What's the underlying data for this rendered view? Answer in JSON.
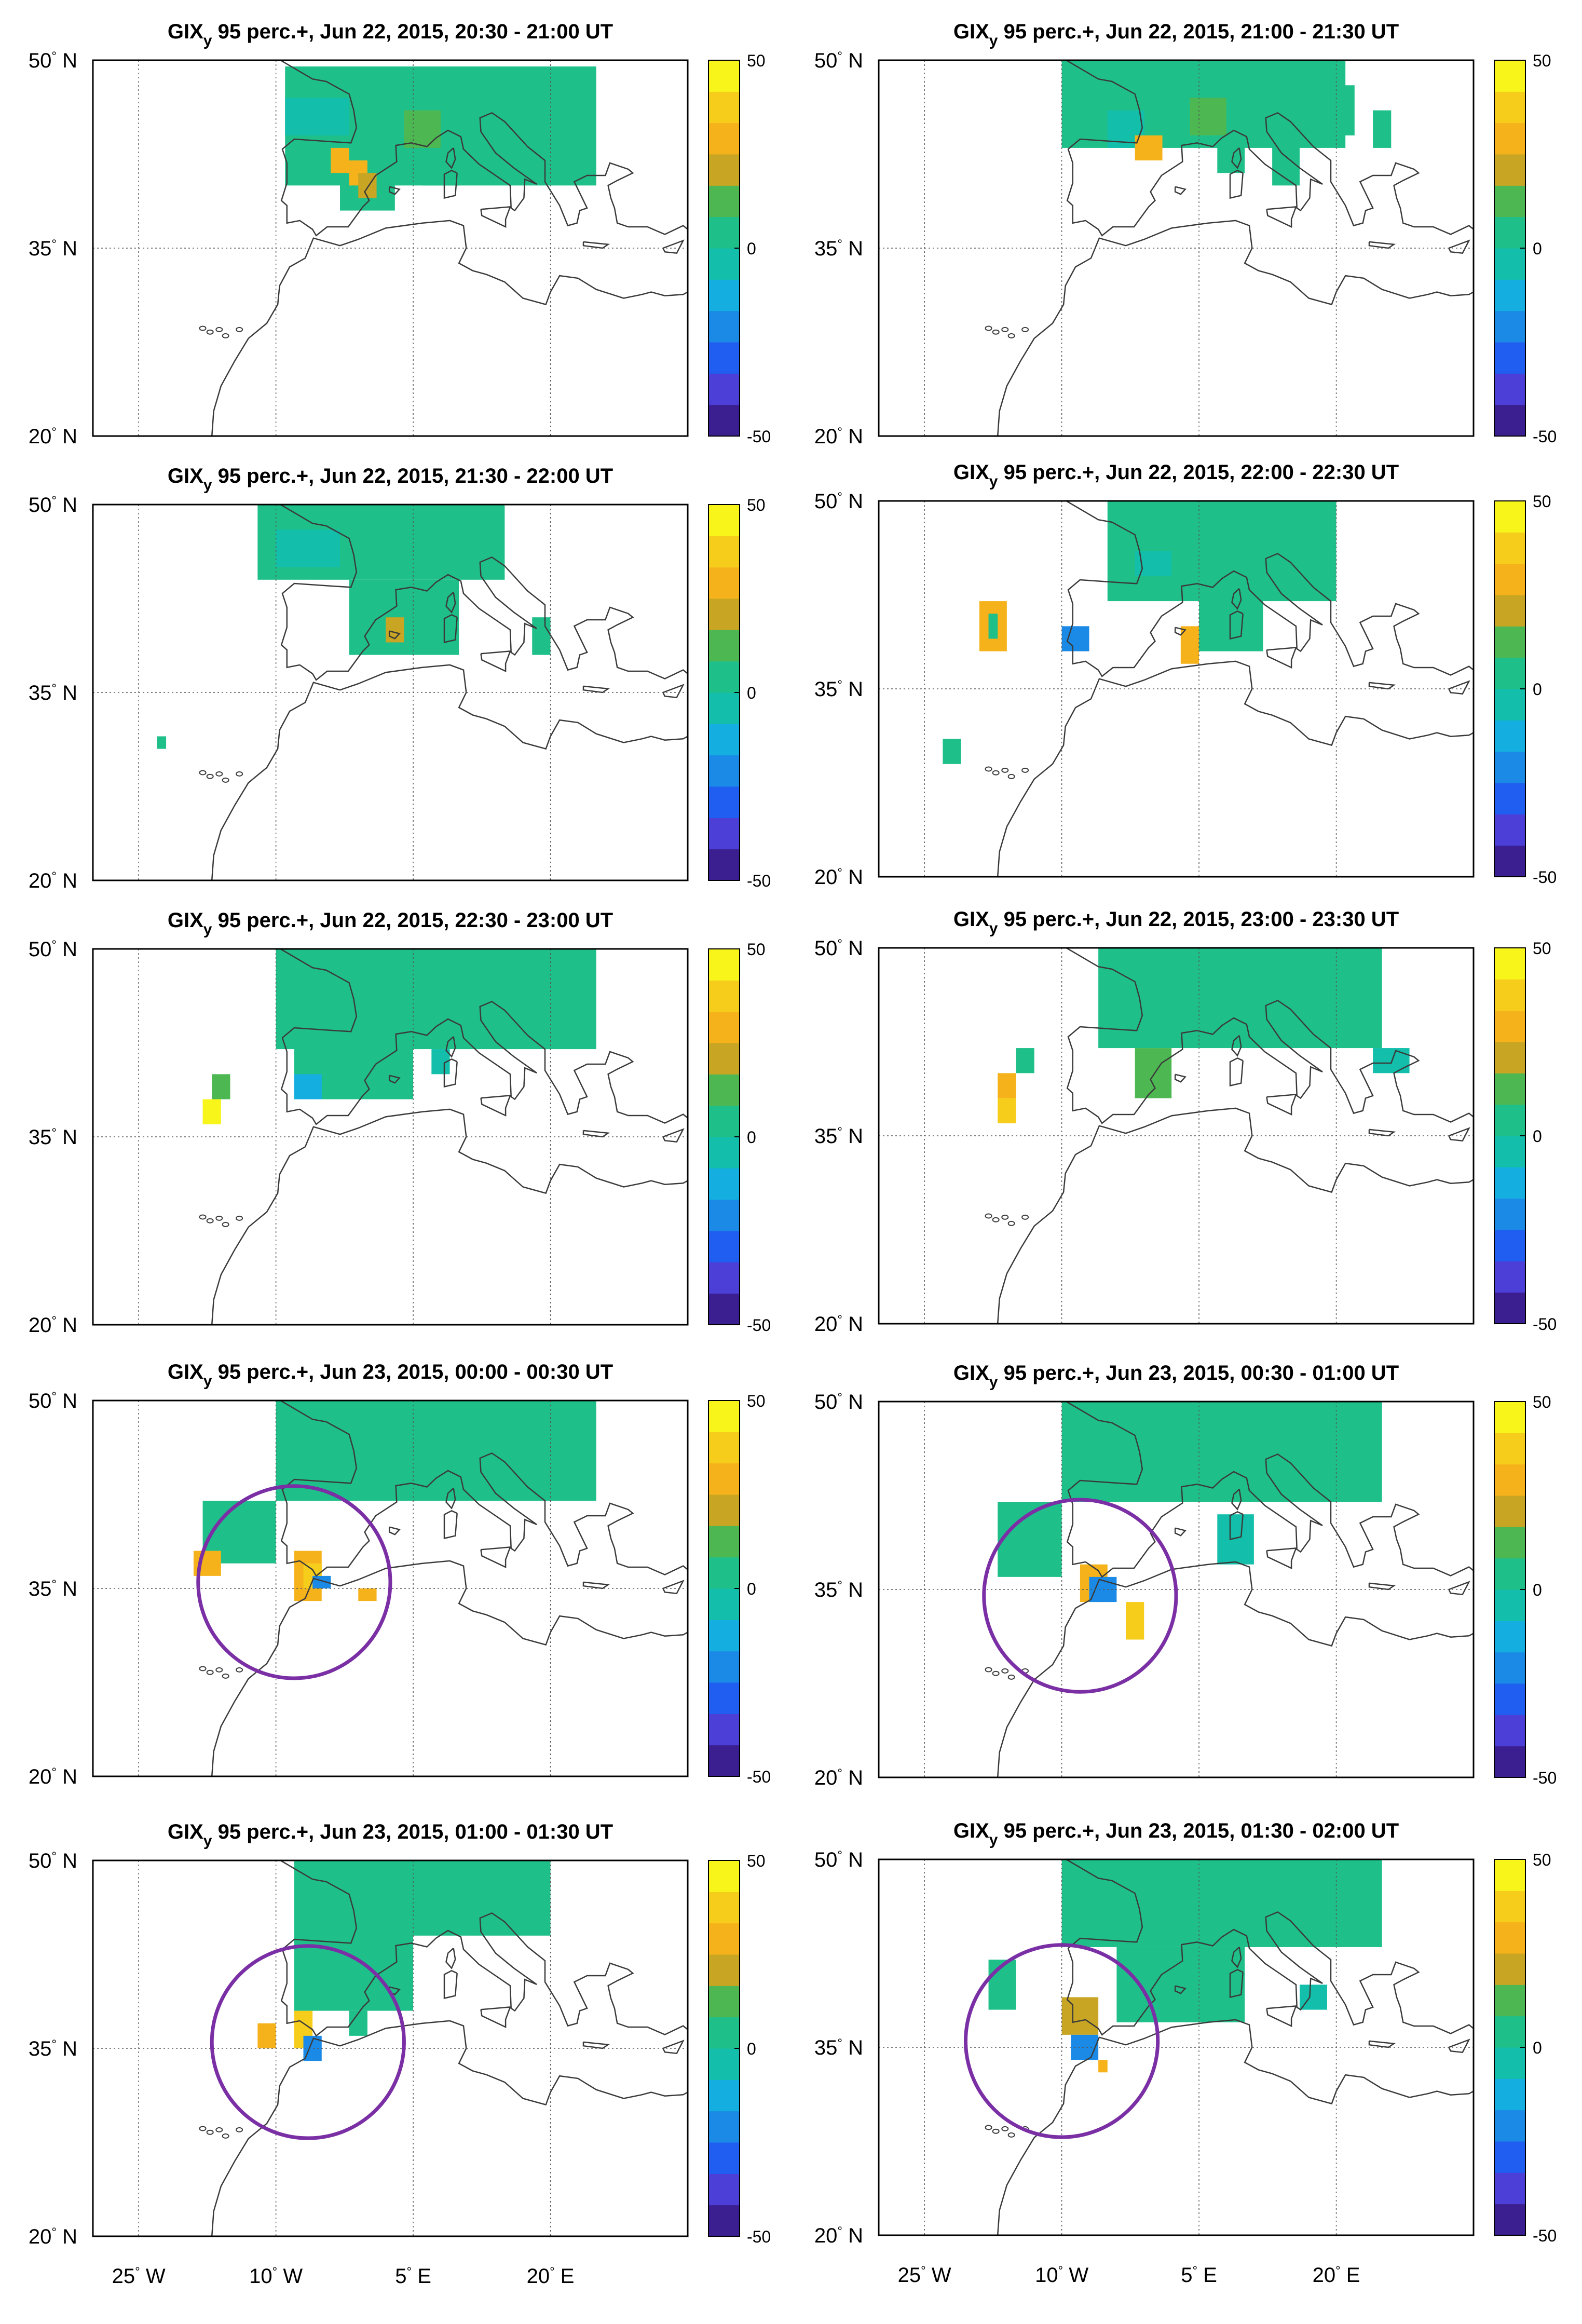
{
  "chart_data": {
    "type": "heatmap",
    "variable": "GIX",
    "variable_subscript": "y",
    "title_suffix": " 95 perc.+, ",
    "axis": {
      "lon": {
        "min": -30,
        "max": 35,
        "ticks": [
          -25,
          -10,
          5,
          20
        ],
        "labels": [
          "25",
          "10",
          "5",
          "20"
        ],
        "hemis": [
          "W",
          "W",
          "E",
          "E"
        ]
      },
      "lat": {
        "min": 20,
        "max": 50,
        "ticks": [
          20,
          35,
          50
        ],
        "labels": [
          "20",
          "35",
          "50"
        ],
        "hemi": "N"
      },
      "grid": true
    },
    "colorbar": {
      "min": -50,
      "max": 50,
      "ticks": [
        50,
        0,
        -50
      ],
      "tick_labels": [
        "50",
        "0",
        "-50"
      ],
      "colors": [
        "#3b1e8f",
        "#4b3fd8",
        "#1f5ef0",
        "#1a8ae6",
        "#14aee0",
        "#13bfaa",
        "#1fbf8a",
        "#4db852",
        "#c8a523",
        "#f5b21a",
        "#f7cd1c",
        "#f7f51a"
      ]
    },
    "panels": [
      {
        "title": "Jun 22, 2015, 20:30 - 21:00 UT",
        "circle": null,
        "patches": [
          {
            "lon": [
              -9,
              25
            ],
            "lat": [
              40,
              49.5
            ],
            "c": 6
          },
          {
            "lon": [
              -9,
              -2
            ],
            "lat": [
              44,
              47
            ],
            "c": 5
          },
          {
            "lon": [
              4,
              8
            ],
            "lat": [
              43,
              46
            ],
            "c": 7
          },
          {
            "lon": [
              -3,
              3
            ],
            "lat": [
              38,
              43
            ],
            "c": 6
          },
          {
            "lon": [
              -2,
              0
            ],
            "lat": [
              40,
              42
            ],
            "c": 9
          },
          {
            "lon": [
              -1,
              1
            ],
            "lat": [
              39,
              41
            ],
            "c": 8
          },
          {
            "lon": [
              6,
              10
            ],
            "lat": [
              40,
              43
            ],
            "c": 6
          },
          {
            "lon": [
              -4,
              -2
            ],
            "lat": [
              41,
              43
            ],
            "c": 9
          },
          {
            "lon": [
              18,
              20
            ],
            "lat": [
              41,
              43
            ],
            "c": 6
          }
        ]
      },
      {
        "title": "Jun 22, 2015, 21:00 - 21:30 UT",
        "circle": null,
        "patches": [
          {
            "lon": [
              -10,
              21
            ],
            "lat": [
              43,
              50
            ],
            "c": 6
          },
          {
            "lon": [
              -5,
              -1
            ],
            "lat": [
              43,
              46
            ],
            "c": 5
          },
          {
            "lon": [
              -2,
              1
            ],
            "lat": [
              42,
              44
            ],
            "c": 9
          },
          {
            "lon": [
              4,
              8
            ],
            "lat": [
              44,
              47
            ],
            "c": 7
          },
          {
            "lon": [
              7,
              10
            ],
            "lat": [
              41,
              44
            ],
            "c": 6
          },
          {
            "lon": [
              13,
              16
            ],
            "lat": [
              40,
              44
            ],
            "c": 6
          },
          {
            "lon": [
              20,
              22
            ],
            "lat": [
              44,
              48
            ],
            "c": 6
          },
          {
            "lon": [
              24,
              26
            ],
            "lat": [
              43,
              46
            ],
            "c": 6
          }
        ]
      },
      {
        "title": "Jun 22, 2015, 21:30 - 22:00 UT",
        "circle": null,
        "patches": [
          {
            "lon": [
              -12,
              15
            ],
            "lat": [
              44,
              50
            ],
            "c": 6
          },
          {
            "lon": [
              -10,
              -3
            ],
            "lat": [
              45,
              48
            ],
            "c": 5
          },
          {
            "lon": [
              -2,
              10
            ],
            "lat": [
              38,
              44
            ],
            "c": 6
          },
          {
            "lon": [
              2,
              4
            ],
            "lat": [
              39,
              41
            ],
            "c": 8
          },
          {
            "lon": [
              18,
              20
            ],
            "lat": [
              38,
              41
            ],
            "c": 6
          },
          {
            "lon": [
              -23,
              -22
            ],
            "lat": [
              30.5,
              31.5
            ],
            "c": 6
          }
        ]
      },
      {
        "title": "Jun 22, 2015, 22:00 - 22:30 UT",
        "circle": null,
        "patches": [
          {
            "lon": [
              -5,
              20
            ],
            "lat": [
              42,
              50
            ],
            "c": 6
          },
          {
            "lon": [
              -2,
              2
            ],
            "lat": [
              44,
              46
            ],
            "c": 5
          },
          {
            "lon": [
              -19,
              -16
            ],
            "lat": [
              38,
              42
            ],
            "c": 9
          },
          {
            "lon": [
              -18,
              -17
            ],
            "lat": [
              39,
              41
            ],
            "c": 6
          },
          {
            "lon": [
              3,
              5
            ],
            "lat": [
              37,
              40
            ],
            "c": 9
          },
          {
            "lon": [
              5,
              12
            ],
            "lat": [
              38,
              43
            ],
            "c": 6
          },
          {
            "lon": [
              -23,
              -21
            ],
            "lat": [
              29,
              31
            ],
            "c": 6
          },
          {
            "lon": [
              -10,
              -7
            ],
            "lat": [
              38,
              40
            ],
            "c": 3
          }
        ]
      },
      {
        "title": "Jun 22, 2015, 22:30 - 23:00 UT",
        "circle": null,
        "patches": [
          {
            "lon": [
              -10,
              25
            ],
            "lat": [
              42,
              50
            ],
            "c": 6
          },
          {
            "lon": [
              -8,
              5
            ],
            "lat": [
              38,
              43
            ],
            "c": 6
          },
          {
            "lon": [
              -8,
              -5
            ],
            "lat": [
              38,
              40
            ],
            "c": 4
          },
          {
            "lon": [
              -17,
              -15
            ],
            "lat": [
              38,
              40
            ],
            "c": 7
          },
          {
            "lon": [
              -18,
              -16
            ],
            "lat": [
              36,
              38
            ],
            "c": 11
          },
          {
            "lon": [
              7,
              9
            ],
            "lat": [
              40,
              42
            ],
            "c": 5
          }
        ]
      },
      {
        "title": "Jun 22, 2015, 23:00 - 23:30 UT",
        "circle": null,
        "patches": [
          {
            "lon": [
              -6,
              25
            ],
            "lat": [
              42,
              50
            ],
            "c": 6
          },
          {
            "lon": [
              -2,
              2
            ],
            "lat": [
              38,
              42
            ],
            "c": 7
          },
          {
            "lon": [
              -17,
              -15
            ],
            "lat": [
              38,
              40
            ],
            "c": 9
          },
          {
            "lon": [
              -17,
              -15
            ],
            "lat": [
              36,
              38
            ],
            "c": 10
          },
          {
            "lon": [
              -15,
              -13
            ],
            "lat": [
              40,
              42
            ],
            "c": 6
          },
          {
            "lon": [
              24,
              28
            ],
            "lat": [
              40,
              42
            ],
            "c": 5
          }
        ]
      },
      {
        "title": "Jun 23, 2015, 00:00 - 00:30 UT",
        "circle": {
          "lon": -8,
          "lat": 35.5,
          "r_lon": 10.5
        },
        "patches": [
          {
            "lon": [
              -10,
              25
            ],
            "lat": [
              42,
              50
            ],
            "c": 6
          },
          {
            "lon": [
              -18,
              -10
            ],
            "lat": [
              37,
              42
            ],
            "c": 6
          },
          {
            "lon": [
              -8,
              -5
            ],
            "lat": [
              34,
              38
            ],
            "c": 9
          },
          {
            "lon": [
              -7,
              -5
            ],
            "lat": [
              35,
              37
            ],
            "c": 10
          },
          {
            "lon": [
              -6,
              -4
            ],
            "lat": [
              35,
              36
            ],
            "c": 3
          },
          {
            "lon": [
              -19,
              -16
            ],
            "lat": [
              36,
              38
            ],
            "c": 9
          },
          {
            "lon": [
              -1,
              1
            ],
            "lat": [
              34,
              35
            ],
            "c": 9
          }
        ]
      },
      {
        "title": "Jun 23, 2015, 00:30 - 01:00 UT",
        "circle": {
          "lon": -8,
          "lat": 34.5,
          "r_lon": 10.5
        },
        "patches": [
          {
            "lon": [
              -10,
              25
            ],
            "lat": [
              42,
              50
            ],
            "c": 6
          },
          {
            "lon": [
              -17,
              -10
            ],
            "lat": [
              36,
              42
            ],
            "c": 6
          },
          {
            "lon": [
              -8,
              -5
            ],
            "lat": [
              34,
              37
            ],
            "c": 9
          },
          {
            "lon": [
              -7,
              -4
            ],
            "lat": [
              34,
              36
            ],
            "c": 3
          },
          {
            "lon": [
              -3,
              -1
            ],
            "lat": [
              31,
              34
            ],
            "c": 10
          },
          {
            "lon": [
              7,
              11
            ],
            "lat": [
              37,
              41
            ],
            "c": 5
          }
        ]
      },
      {
        "title": "Jun 23, 2015, 01:00 - 01:30 UT",
        "circle": {
          "lon": -6.5,
          "lat": 35.5,
          "r_lon": 10.5
        },
        "patches": [
          {
            "lon": [
              -8,
              20
            ],
            "lat": [
              44,
              50
            ],
            "c": 6
          },
          {
            "lon": [
              -8,
              5
            ],
            "lat": [
              38,
              45
            ],
            "c": 6
          },
          {
            "lon": [
              -12,
              -10
            ],
            "lat": [
              35,
              37
            ],
            "c": 9
          },
          {
            "lon": [
              -8,
              -6
            ],
            "lat": [
              35,
              38
            ],
            "c": 10
          },
          {
            "lon": [
              -7,
              -5
            ],
            "lat": [
              34,
              36
            ],
            "c": 3
          },
          {
            "lon": [
              -2,
              0
            ],
            "lat": [
              36,
              38
            ],
            "c": 6
          }
        ]
      },
      {
        "title": "Jun 23, 2015, 01:30 - 02:00 UT",
        "circle": {
          "lon": -10,
          "lat": 35.5,
          "r_lon": 10.5
        },
        "patches": [
          {
            "lon": [
              -10,
              25
            ],
            "lat": [
              43,
              50
            ],
            "c": 6
          },
          {
            "lon": [
              -4,
              10
            ],
            "lat": [
              37,
              43
            ],
            "c": 6
          },
          {
            "lon": [
              -18,
              -15
            ],
            "lat": [
              38,
              42
            ],
            "c": 6
          },
          {
            "lon": [
              -10,
              -6
            ],
            "lat": [
              36,
              39
            ],
            "c": 8
          },
          {
            "lon": [
              -9,
              -6
            ],
            "lat": [
              34,
              36
            ],
            "c": 3
          },
          {
            "lon": [
              -6,
              -5
            ],
            "lat": [
              33,
              34
            ],
            "c": 9
          },
          {
            "lon": [
              16,
              19
            ],
            "lat": [
              38,
              40
            ],
            "c": 5
          }
        ]
      }
    ]
  }
}
